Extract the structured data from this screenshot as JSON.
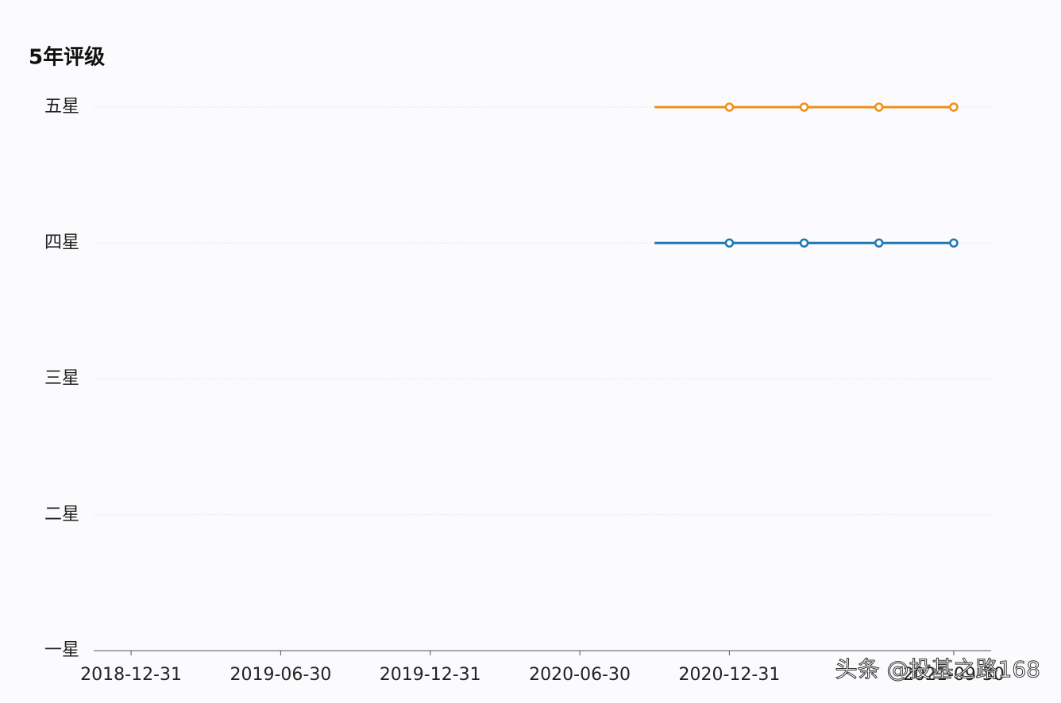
{
  "chart_data": {
    "type": "line",
    "title": "5年评级",
    "categories": [
      "2018-12-31",
      null,
      "2019-06-30",
      null,
      "2019-12-31",
      null,
      "2020-06-30",
      null,
      "2020-12-31",
      null,
      null,
      "2021-09-30"
    ],
    "series": [
      {
        "color": "#f28e16",
        "values": [
          null,
          null,
          null,
          null,
          null,
          null,
          null,
          5,
          5,
          5,
          5,
          5
        ]
      },
      {
        "color": "#1f77b4",
        "values": [
          null,
          null,
          null,
          null,
          null,
          null,
          null,
          4,
          4,
          4,
          4,
          4
        ]
      }
    ],
    "ylim": [
      1,
      5
    ],
    "yticks": [
      {
        "value": 1,
        "label": "一星"
      },
      {
        "value": 2,
        "label": "二星"
      },
      {
        "value": 3,
        "label": "三星"
      },
      {
        "value": 4,
        "label": "四星"
      },
      {
        "value": 5,
        "label": "五星"
      }
    ],
    "grid": true
  },
  "watermark": "头条 @投基之路168"
}
